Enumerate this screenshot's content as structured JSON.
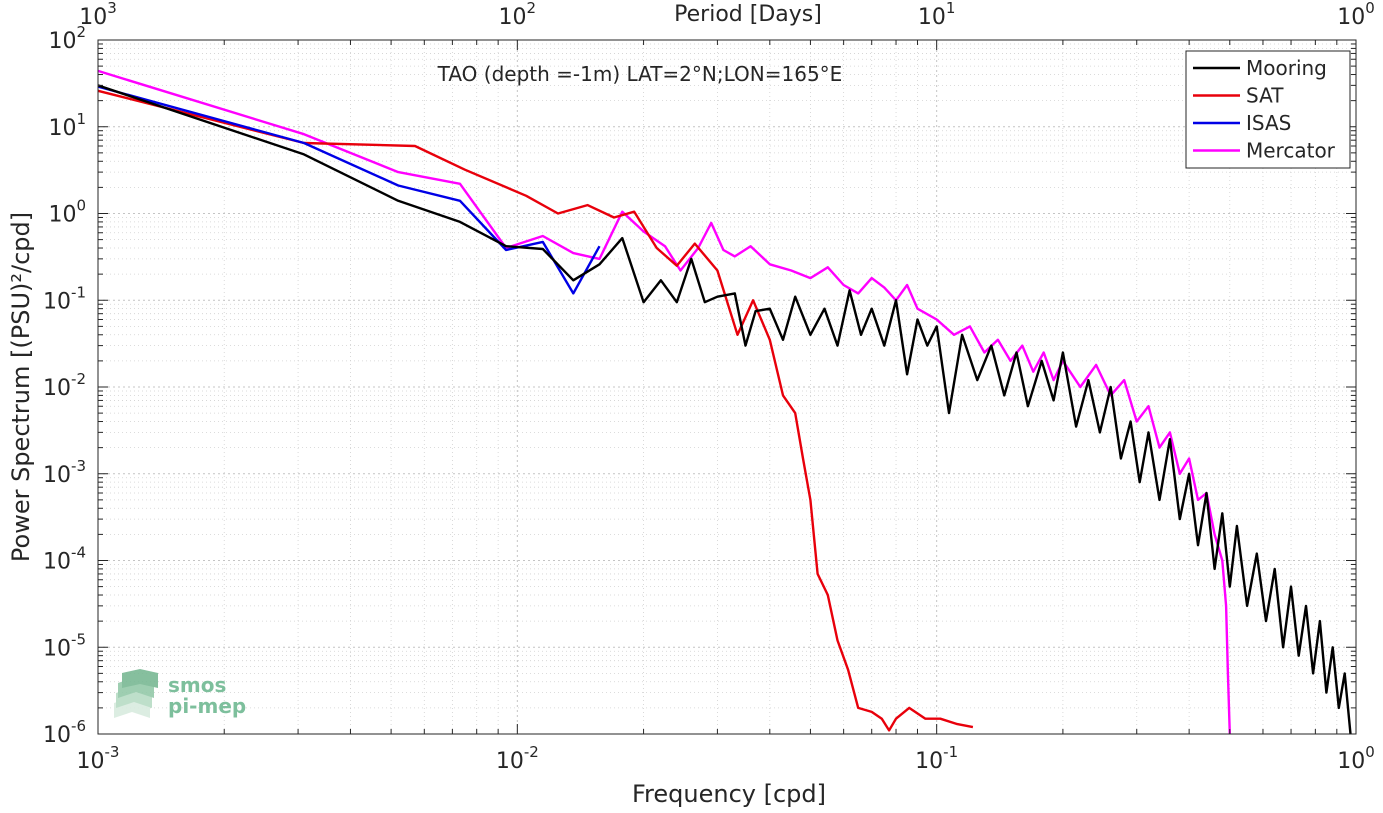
{
  "chart_data": {
    "type": "line",
    "title": "TAO (depth =-1m) LAT=2°N;LON=165°E",
    "xlabel": "Frequency [cpd]",
    "ylabel": "Power Spectrum [(PSU)²/cpd]",
    "top_xlabel": "Period [Days]",
    "xscale": "log",
    "yscale": "log",
    "xlim": [
      0.001,
      1
    ],
    "ylim": [
      1e-06,
      100
    ],
    "grid": true,
    "legend_position": "top-right",
    "x_ticks": [
      {
        "base": "10",
        "exp": "-3",
        "value": 0.001
      },
      {
        "base": "10",
        "exp": "-2",
        "value": 0.01
      },
      {
        "base": "10",
        "exp": "-1",
        "value": 0.1
      },
      {
        "base": "10",
        "exp": "0",
        "value": 1
      }
    ],
    "top_ticks": [
      {
        "base": "10",
        "exp": "3",
        "period": 1000
      },
      {
        "base": "10",
        "exp": "2",
        "period": 100
      },
      {
        "base": "10",
        "exp": "1",
        "period": 10
      },
      {
        "base": "10",
        "exp": "0",
        "period": 1
      }
    ],
    "y_ticks": [
      {
        "base": "10",
        "exp": "2",
        "value": 100
      },
      {
        "base": "10",
        "exp": "1",
        "value": 10
      },
      {
        "base": "10",
        "exp": "0",
        "value": 1
      },
      {
        "base": "10",
        "exp": "-1",
        "value": 0.1
      },
      {
        "base": "10",
        "exp": "-2",
        "value": 0.01
      },
      {
        "base": "10",
        "exp": "-3",
        "value": 0.001
      },
      {
        "base": "10",
        "exp": "-4",
        "value": 0.0001
      },
      {
        "base": "10",
        "exp": "-5",
        "value": 1e-05
      },
      {
        "base": "10",
        "exp": "-6",
        "value": 1e-06
      }
    ],
    "series": [
      {
        "name": "Mooring",
        "color": "#000000",
        "points": [
          [
            0.001,
            30
          ],
          [
            0.0031,
            4.8
          ],
          [
            0.0052,
            1.4
          ],
          [
            0.0073,
            0.8
          ],
          [
            0.0094,
            0.42
          ],
          [
            0.0115,
            0.39
          ],
          [
            0.0136,
            0.17
          ],
          [
            0.0157,
            0.26
          ],
          [
            0.0178,
            0.52
          ],
          [
            0.02,
            0.095
          ],
          [
            0.022,
            0.17
          ],
          [
            0.024,
            0.095
          ],
          [
            0.026,
            0.3
          ],
          [
            0.028,
            0.095
          ],
          [
            0.03,
            0.11
          ],
          [
            0.033,
            0.12
          ],
          [
            0.035,
            0.03
          ],
          [
            0.037,
            0.075
          ],
          [
            0.04,
            0.08
          ],
          [
            0.043,
            0.035
          ],
          [
            0.046,
            0.11
          ],
          [
            0.05,
            0.04
          ],
          [
            0.054,
            0.08
          ],
          [
            0.058,
            0.03
          ],
          [
            0.062,
            0.13
          ],
          [
            0.066,
            0.04
          ],
          [
            0.07,
            0.08
          ],
          [
            0.075,
            0.03
          ],
          [
            0.08,
            0.1
          ],
          [
            0.085,
            0.014
          ],
          [
            0.09,
            0.06
          ],
          [
            0.095,
            0.03
          ],
          [
            0.1,
            0.05
          ],
          [
            0.107,
            0.005
          ],
          [
            0.115,
            0.04
          ],
          [
            0.125,
            0.012
          ],
          [
            0.135,
            0.03
          ],
          [
            0.145,
            0.008
          ],
          [
            0.155,
            0.025
          ],
          [
            0.165,
            0.006
          ],
          [
            0.178,
            0.02
          ],
          [
            0.19,
            0.007
          ],
          [
            0.2,
            0.025
          ],
          [
            0.215,
            0.0035
          ],
          [
            0.23,
            0.012
          ],
          [
            0.245,
            0.003
          ],
          [
            0.26,
            0.01
          ],
          [
            0.275,
            0.0015
          ],
          [
            0.29,
            0.004
          ],
          [
            0.305,
            0.0008
          ],
          [
            0.32,
            0.003
          ],
          [
            0.34,
            0.0005
          ],
          [
            0.36,
            0.0025
          ],
          [
            0.38,
            0.0003
          ],
          [
            0.4,
            0.001
          ],
          [
            0.42,
            0.00015
          ],
          [
            0.44,
            0.0006
          ],
          [
            0.46,
            8e-05
          ],
          [
            0.48,
            0.00035
          ],
          [
            0.5,
            5e-05
          ],
          [
            0.52,
            0.00025
          ],
          [
            0.55,
            3e-05
          ],
          [
            0.58,
            0.00012
          ],
          [
            0.61,
            2e-05
          ],
          [
            0.64,
            8e-05
          ],
          [
            0.67,
            1e-05
          ],
          [
            0.7,
            5e-05
          ],
          [
            0.73,
            8e-06
          ],
          [
            0.76,
            3e-05
          ],
          [
            0.79,
            5e-06
          ],
          [
            0.82,
            2e-05
          ],
          [
            0.85,
            3e-06
          ],
          [
            0.88,
            1e-05
          ],
          [
            0.91,
            2e-06
          ],
          [
            0.94,
            5e-06
          ],
          [
            0.97,
            1e-06
          ]
        ]
      },
      {
        "name": "SAT",
        "color": "#e8000b",
        "points": [
          [
            0.001,
            26
          ],
          [
            0.0031,
            6.5
          ],
          [
            0.0057,
            6
          ],
          [
            0.0075,
            3.2
          ],
          [
            0.0105,
            1.6
          ],
          [
            0.0125,
            1.0
          ],
          [
            0.0147,
            1.25
          ],
          [
            0.017,
            0.9
          ],
          [
            0.019,
            1.05
          ],
          [
            0.0215,
            0.4
          ],
          [
            0.024,
            0.25
          ],
          [
            0.0265,
            0.45
          ],
          [
            0.03,
            0.22
          ],
          [
            0.0335,
            0.04
          ],
          [
            0.0365,
            0.1
          ],
          [
            0.04,
            0.035
          ],
          [
            0.043,
            0.008
          ],
          [
            0.046,
            0.005
          ],
          [
            0.048,
            0.0015
          ],
          [
            0.05,
            0.0005
          ],
          [
            0.052,
            7e-05
          ],
          [
            0.055,
            4e-05
          ],
          [
            0.058,
            1.2e-05
          ],
          [
            0.0615,
            5.5e-06
          ],
          [
            0.065,
            2e-06
          ],
          [
            0.07,
            1.8e-06
          ],
          [
            0.074,
            1.5e-06
          ],
          [
            0.077,
            1.1e-06
          ],
          [
            0.08,
            1.5e-06
          ],
          [
            0.083,
            9e-07
          ],
          [
            0.086,
            2e-06
          ],
          [
            0.09,
            9e-07
          ],
          [
            0.094,
            1.5e-06
          ],
          [
            0.098,
            9e-07
          ],
          [
            0.102,
            1.5e-06
          ],
          [
            0.107,
            8e-07
          ],
          [
            0.112,
            1.3e-06
          ],
          [
            0.117,
            9e-07
          ],
          [
            0.122,
            1.2e-06
          ]
        ]
      },
      {
        "name": "ISAS",
        "color": "#0000e6",
        "points": [
          [
            0.001,
            29
          ],
          [
            0.0031,
            6.5
          ],
          [
            0.0052,
            2.1
          ],
          [
            0.0073,
            1.4
          ],
          [
            0.0094,
            0.38
          ],
          [
            0.0115,
            0.47
          ],
          [
            0.0136,
            0.12
          ],
          [
            0.0157,
            0.42
          ]
        ]
      },
      {
        "name": "Mercator",
        "color": "#ff00ff",
        "points": [
          [
            0.001,
            44
          ],
          [
            0.0031,
            8.2
          ],
          [
            0.0052,
            3.0
          ],
          [
            0.0073,
            2.2
          ],
          [
            0.0094,
            0.4
          ],
          [
            0.0115,
            0.55
          ],
          [
            0.0136,
            0.35
          ],
          [
            0.0157,
            0.3
          ],
          [
            0.0178,
            1.05
          ],
          [
            0.02,
            0.62
          ],
          [
            0.0225,
            0.42
          ],
          [
            0.0245,
            0.22
          ],
          [
            0.027,
            0.4
          ],
          [
            0.029,
            0.78
          ],
          [
            0.031,
            0.38
          ],
          [
            0.033,
            0.32
          ],
          [
            0.036,
            0.42
          ],
          [
            0.04,
            0.26
          ],
          [
            0.045,
            0.22
          ],
          [
            0.05,
            0.18
          ],
          [
            0.055,
            0.24
          ],
          [
            0.06,
            0.15
          ],
          [
            0.065,
            0.12
          ],
          [
            0.07,
            0.18
          ],
          [
            0.075,
            0.14
          ],
          [
            0.08,
            0.1
          ],
          [
            0.085,
            0.15
          ],
          [
            0.09,
            0.08
          ],
          [
            0.1,
            0.06
          ],
          [
            0.11,
            0.04
          ],
          [
            0.12,
            0.05
          ],
          [
            0.13,
            0.025
          ],
          [
            0.14,
            0.035
          ],
          [
            0.15,
            0.02
          ],
          [
            0.16,
            0.03
          ],
          [
            0.17,
            0.015
          ],
          [
            0.18,
            0.025
          ],
          [
            0.19,
            0.012
          ],
          [
            0.2,
            0.02
          ],
          [
            0.22,
            0.01
          ],
          [
            0.24,
            0.018
          ],
          [
            0.26,
            0.008
          ],
          [
            0.28,
            0.012
          ],
          [
            0.3,
            0.004
          ],
          [
            0.32,
            0.006
          ],
          [
            0.34,
            0.002
          ],
          [
            0.36,
            0.003
          ],
          [
            0.38,
            0.001
          ],
          [
            0.4,
            0.0015
          ],
          [
            0.42,
            0.0005
          ],
          [
            0.44,
            0.0006
          ],
          [
            0.46,
            0.0002
          ],
          [
            0.48,
            0.0001
          ],
          [
            0.49,
            3e-05
          ],
          [
            0.495,
            5e-06
          ],
          [
            0.5,
            1e-06
          ]
        ]
      }
    ]
  },
  "watermark": {
    "line1": "smos",
    "line2": "pi-mep",
    "color": "#7dbf9c"
  }
}
